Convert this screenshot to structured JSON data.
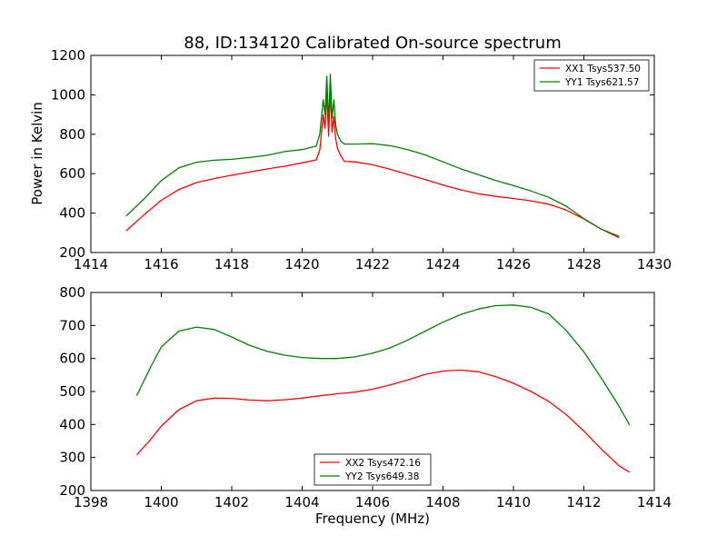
{
  "chart_data": [
    {
      "type": "line",
      "title": "88, ID:134120 Calibrated On-source spectrum",
      "xlabel": "",
      "ylabel": "Power in Kelvin",
      "xlim": [
        1414,
        1430
      ],
      "ylim": [
        200,
        1200
      ],
      "xticks": [
        "1414",
        "1416",
        "1418",
        "1420",
        "1422",
        "1424",
        "1426",
        "1428",
        "1430"
      ],
      "yticks": [
        "200",
        "400",
        "600",
        "800",
        "1000",
        "1200"
      ],
      "grid": false,
      "legend_position": "top-right",
      "series": [
        {
          "name": "XX1 Tsys537.50",
          "color": "#ff0000",
          "x": [
            1415.0,
            1415.5,
            1416.0,
            1416.5,
            1417.0,
            1417.5,
            1418.0,
            1418.5,
            1419.0,
            1419.5,
            1420.0,
            1420.4,
            1420.5,
            1420.6,
            1420.65,
            1420.7,
            1420.75,
            1420.8,
            1420.85,
            1420.9,
            1420.95,
            1421.0,
            1421.1,
            1421.2,
            1421.5,
            1422.0,
            1422.5,
            1423.0,
            1423.5,
            1424.0,
            1424.5,
            1425.0,
            1425.5,
            1426.0,
            1426.5,
            1427.0,
            1427.5,
            1428.0,
            1428.5,
            1429.0
          ],
          "y": [
            310,
            390,
            465,
            520,
            555,
            575,
            592,
            608,
            624,
            638,
            655,
            670,
            720,
            900,
            830,
            1010,
            790,
            1020,
            810,
            890,
            780,
            730,
            690,
            662,
            660,
            645,
            622,
            596,
            570,
            542,
            518,
            498,
            485,
            474,
            462,
            445,
            415,
            370,
            318,
            275
          ]
        },
        {
          "name": "YY1 Tsys621.57",
          "color": "#008000",
          "x": [
            1415.0,
            1415.5,
            1416.0,
            1416.5,
            1417.0,
            1417.5,
            1418.0,
            1418.5,
            1419.0,
            1419.5,
            1420.0,
            1420.4,
            1420.5,
            1420.6,
            1420.65,
            1420.7,
            1420.75,
            1420.8,
            1420.85,
            1420.9,
            1420.95,
            1421.0,
            1421.1,
            1421.2,
            1421.5,
            1422.0,
            1422.5,
            1423.0,
            1423.5,
            1424.0,
            1424.5,
            1425.0,
            1425.5,
            1426.0,
            1426.5,
            1427.0,
            1427.5,
            1428.0,
            1428.5,
            1429.0
          ],
          "y": [
            385,
            470,
            565,
            630,
            658,
            668,
            673,
            682,
            693,
            712,
            722,
            740,
            800,
            975,
            900,
            1095,
            860,
            1105,
            880,
            975,
            850,
            800,
            765,
            750,
            750,
            752,
            742,
            722,
            695,
            660,
            625,
            595,
            565,
            540,
            512,
            480,
            435,
            372,
            318,
            282
          ]
        }
      ]
    },
    {
      "type": "line",
      "title": "",
      "xlabel": "Frequency (MHz)",
      "ylabel": "",
      "xlim": [
        1398,
        1414
      ],
      "ylim": [
        200,
        800
      ],
      "xticks": [
        "1398",
        "1400",
        "1402",
        "1404",
        "1406",
        "1408",
        "1410",
        "1412",
        "1414"
      ],
      "yticks": [
        "200",
        "300",
        "400",
        "500",
        "600",
        "700",
        "800"
      ],
      "grid": false,
      "legend_position": "bottom-center",
      "series": [
        {
          "name": "XX2 Tsys472.16",
          "color": "#ff0000",
          "x": [
            1399.3,
            1399.7,
            1400.0,
            1400.5,
            1401.0,
            1401.5,
            1402.0,
            1402.5,
            1403.0,
            1403.5,
            1404.0,
            1404.5,
            1405.0,
            1405.5,
            1406.0,
            1406.5,
            1407.0,
            1407.5,
            1408.0,
            1408.5,
            1409.0,
            1409.5,
            1410.0,
            1410.5,
            1411.0,
            1411.5,
            1412.0,
            1412.5,
            1413.0,
            1413.3
          ],
          "y": [
            308,
            355,
            395,
            445,
            472,
            480,
            479,
            474,
            472,
            475,
            480,
            487,
            493,
            498,
            507,
            520,
            535,
            552,
            562,
            565,
            560,
            545,
            525,
            500,
            470,
            430,
            380,
            325,
            275,
            255
          ]
        },
        {
          "name": "YY2 Tsys649.38",
          "color": "#008000",
          "x": [
            1399.3,
            1399.7,
            1400.0,
            1400.5,
            1401.0,
            1401.5,
            1402.0,
            1402.5,
            1403.0,
            1403.5,
            1404.0,
            1404.5,
            1405.0,
            1405.5,
            1406.0,
            1406.5,
            1407.0,
            1407.5,
            1408.0,
            1408.5,
            1409.0,
            1409.5,
            1410.0,
            1410.5,
            1411.0,
            1411.5,
            1412.0,
            1412.5,
            1413.0,
            1413.3
          ],
          "y": [
            487,
            575,
            635,
            683,
            695,
            688,
            665,
            640,
            622,
            610,
            603,
            600,
            600,
            605,
            616,
            632,
            656,
            683,
            710,
            733,
            750,
            760,
            762,
            755,
            735,
            685,
            620,
            540,
            455,
            398
          ]
        }
      ]
    }
  ]
}
